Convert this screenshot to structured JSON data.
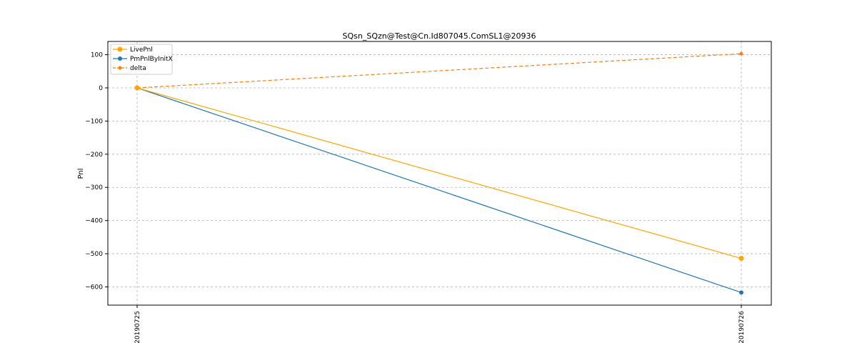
{
  "chart_data": {
    "type": "line",
    "title": "SQsn_SQzn@Test@Cn.Id807045.ComSL1@20936",
    "xlabel": "",
    "ylabel": "Pnl",
    "categories": [
      "20190725",
      "20190726"
    ],
    "ylim": [
      -655,
      140
    ],
    "yticks": [
      100,
      0,
      -100,
      -200,
      -300,
      -400,
      -500,
      -600
    ],
    "ytick_labels": [
      "100",
      "0",
      "−100",
      "−200",
      "−300",
      "−400",
      "−500",
      "−600"
    ],
    "grid": true,
    "legend_position": "top-left",
    "series": [
      {
        "name": "LivePnl",
        "values": [
          0,
          -514
        ],
        "color": "#ffa500",
        "line_style": "solid",
        "marker": "circle"
      },
      {
        "name": "PmPnlByInitX",
        "values": [
          0,
          -617
        ],
        "color": "#1f77b4",
        "line_style": "solid",
        "marker": "circle"
      },
      {
        "name": "delta",
        "values": [
          0,
          103
        ],
        "color": "#ff7f0e",
        "line_style": "dashed",
        "marker": "circle"
      }
    ]
  }
}
